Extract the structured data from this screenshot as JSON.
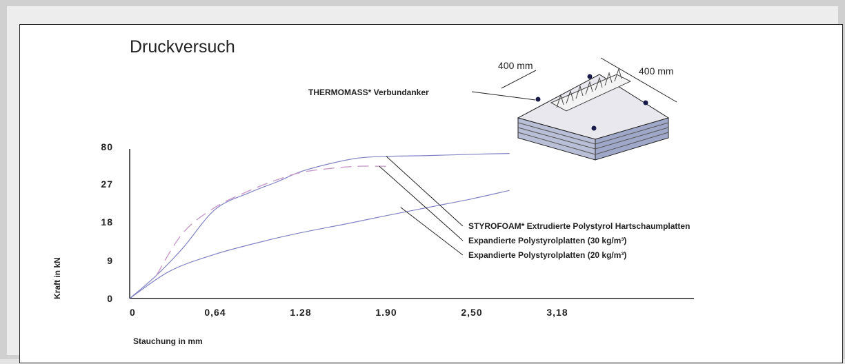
{
  "chart_data": {
    "type": "line",
    "title": "Druckversuch",
    "xlabel": "Stauchung in mm",
    "ylabel": "Kraft in kN",
    "x_ticks": [
      "0",
      "0,64",
      "1.28",
      "1.90",
      "2,50",
      "3,18"
    ],
    "y_ticks": [
      "0",
      "9",
      "18",
      "27",
      "80"
    ],
    "grid": false,
    "legend_placement": "right",
    "series": [
      {
        "name": "STYROFOAM* Extrudierte Polystyrol Hartschaumplatten",
        "style": "solid",
        "x": [
          0,
          0.2,
          0.4,
          0.64,
          0.9,
          1.1,
          1.28,
          1.5,
          1.7,
          1.9,
          2.2,
          2.5,
          2.8
        ],
        "y": [
          0,
          5.5,
          12,
          21,
          25,
          27.5,
          30,
          32,
          33.3,
          33.7,
          33.9,
          34.2,
          34.4
        ]
      },
      {
        "name": "Expandierte Polystyrolplatten (30 kg/m³)",
        "style": "dashed",
        "x": [
          0.2,
          0.4,
          0.64,
          0.9,
          1.1,
          1.28,
          1.5,
          1.7,
          1.9
        ],
        "y": [
          5.5,
          15.5,
          21.5,
          25.5,
          28,
          29.8,
          30.8,
          31.3,
          31.3
        ]
      },
      {
        "name": "Expandierte Polystyrolplatten (20 kg/m³)",
        "style": "solid",
        "x": [
          0,
          0.3,
          0.64,
          1.0,
          1.28,
          1.6,
          1.9,
          2.2,
          2.5,
          2.8
        ],
        "y": [
          0,
          6.5,
          10.5,
          13.5,
          15.5,
          17.5,
          19.5,
          21.5,
          23.5,
          25.5
        ]
      }
    ]
  },
  "illustration": {
    "label": "THERMOMASS* Verbundanker",
    "dim_a": "400 mm",
    "dim_b": "400 mm"
  },
  "colors": {
    "curve": "#8282c4",
    "dash": "#c79ac9",
    "ink": "#222222"
  }
}
